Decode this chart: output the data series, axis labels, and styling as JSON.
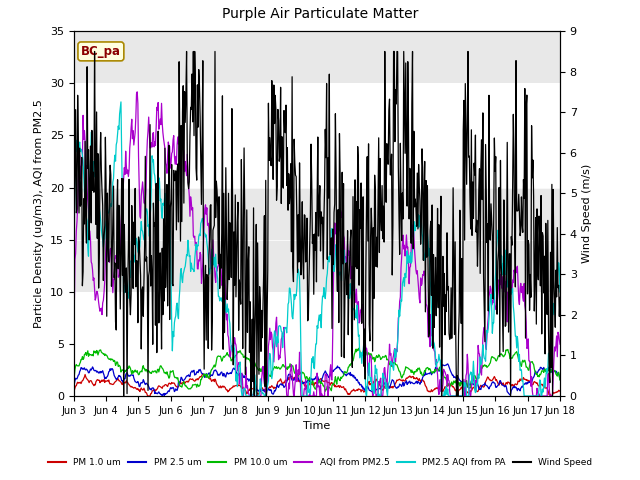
{
  "title": "Purple Air Particulate Matter",
  "xlabel": "Time",
  "ylabel_left": "Particle Density (ug/m3), AQI from PM2.5",
  "ylabel_right": "Wind Speed (m/s)",
  "annotation": "BC_pa",
  "ylim_left": [
    0,
    35
  ],
  "ylim_right": [
    0,
    9.0
  ],
  "yticks_left": [
    0,
    5,
    10,
    15,
    20,
    25,
    30,
    35
  ],
  "yticks_right": [
    0.0,
    1.0,
    2.0,
    3.0,
    4.0,
    5.0,
    6.0,
    7.0,
    8.0,
    9.0
  ],
  "xtick_labels": [
    "Jun 3",
    "Jun 4",
    "Jun 5",
    "Jun 6",
    "Jun 7",
    "Jun 8",
    "Jun 9",
    "Jun 10",
    "Jun 11",
    "Jun 12",
    "Jun 13",
    "Jun 14",
    "Jun 15",
    "Jun 16",
    "Jun 17",
    "Jun 18"
  ],
  "colors": {
    "pm1": "#cc0000",
    "pm25": "#0000cc",
    "pm10": "#00bb00",
    "aqi_pm25": "#aa00cc",
    "pm25_pa": "#00cccc",
    "wind": "#000000"
  },
  "legend_labels": [
    "PM 1.0 um",
    "PM 2.5 um",
    "PM 10.0 um",
    "AQI from PM2.5",
    "PM2.5 AQI from PA",
    "Wind Speed"
  ],
  "plot_bg": "#ffffff",
  "band_color": "#e8e8e8",
  "n_points": 720,
  "seed": 42
}
